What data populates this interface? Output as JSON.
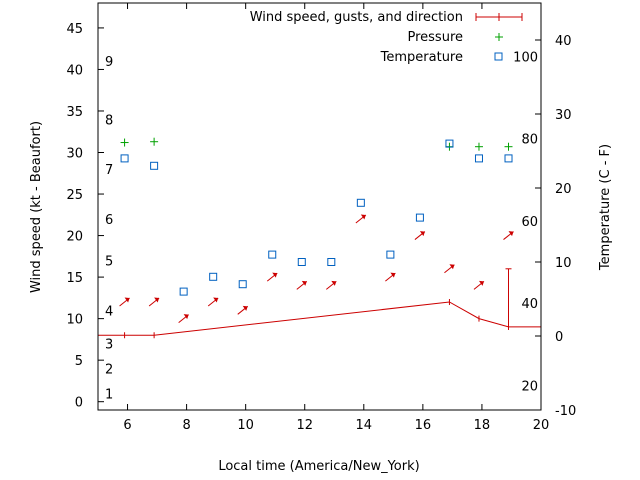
{
  "chart_data": {
    "type": "line",
    "xlabel": "Local time (America/New_York)",
    "ylabel_left": "Wind speed (kt - Beaufort)",
    "ylabel_right": "Temperature (C - F)",
    "xlim": [
      5,
      20
    ],
    "ylim_left": [
      -1,
      48
    ],
    "ylim_right": [
      -10,
      45
    ],
    "x_ticks": [
      "6",
      "8",
      "10",
      "12",
      "14",
      "16",
      "18",
      "20"
    ],
    "x_tick_values": [
      6,
      8,
      10,
      12,
      14,
      16,
      18,
      20
    ],
    "y_ticks_left": [
      "0",
      "5",
      "10",
      "15",
      "20",
      "25",
      "30",
      "35",
      "40",
      "45"
    ],
    "y_tick_values_left": [
      0,
      5,
      10,
      15,
      20,
      25,
      30,
      35,
      40,
      45
    ],
    "y_ticks_right": [
      "-10",
      "0",
      "10",
      "20",
      "30",
      "40"
    ],
    "y_tick_values_right": [
      -10,
      0,
      10,
      20,
      30,
      40
    ],
    "beaufort_labels": [
      {
        "label": "1",
        "value": 1
      },
      {
        "label": "2",
        "value": 4
      },
      {
        "label": "3",
        "value": 7
      },
      {
        "label": "4",
        "value": 11
      },
      {
        "label": "5",
        "value": 17
      },
      {
        "label": "6",
        "value": 22
      },
      {
        "label": "7",
        "value": 28
      },
      {
        "label": "8",
        "value": 34
      },
      {
        "label": "9",
        "value": 41
      }
    ],
    "fahrenheit_labels": [
      {
        "label": "20",
        "value_c": -6.67
      },
      {
        "label": "40",
        "value_c": 4.44
      },
      {
        "label": "60",
        "value_c": 15.56
      },
      {
        "label": "80",
        "value_c": 26.67
      },
      {
        "label": "100",
        "value_c": 37.78
      }
    ],
    "legend_position": "top-right",
    "series": [
      {
        "name": "Wind speed, gusts, and direction",
        "color": "#cc0000",
        "x": [
          5,
          5.9,
          6.9,
          16.9,
          17.9,
          18.9,
          20
        ],
        "y": [
          8,
          8,
          8,
          12,
          10,
          9,
          9
        ],
        "gusts": [
          {
            "x": 18.9,
            "y": 16
          }
        ],
        "directions": [
          {
            "x": 5.9,
            "y": 12
          },
          {
            "x": 6.9,
            "y": 12
          },
          {
            "x": 7.9,
            "y": 10
          },
          {
            "x": 8.9,
            "y": 12
          },
          {
            "x": 9.9,
            "y": 11
          },
          {
            "x": 10.9,
            "y": 15
          },
          {
            "x": 11.9,
            "y": 14
          },
          {
            "x": 12.9,
            "y": 14
          },
          {
            "x": 13.9,
            "y": 22
          },
          {
            "x": 14.9,
            "y": 15
          },
          {
            "x": 15.9,
            "y": 20
          },
          {
            "x": 16.9,
            "y": 16
          },
          {
            "x": 17.9,
            "y": 14
          },
          {
            "x": 18.9,
            "y": 20
          }
        ]
      },
      {
        "name": "Pressure",
        "color": "#00a000",
        "x": [
          5.9,
          6.9,
          16.9,
          17.9,
          18.9
        ],
        "y": [
          31.2,
          31.3,
          30.7,
          30.7,
          30.7
        ]
      },
      {
        "name": "Temperature",
        "color": "#0060c0",
        "axis": "right",
        "x": [
          5.9,
          6.9,
          7.9,
          8.9,
          9.9,
          10.9,
          11.9,
          12.9,
          13.9,
          14.9,
          15.9,
          16.9,
          17.9,
          18.9
        ],
        "y": [
          24.0,
          23.0,
          6.0,
          8.0,
          7.0,
          11.0,
          10.0,
          10.0,
          18.0,
          11.0,
          16.0,
          26.0,
          24.0,
          24.0
        ]
      }
    ]
  }
}
